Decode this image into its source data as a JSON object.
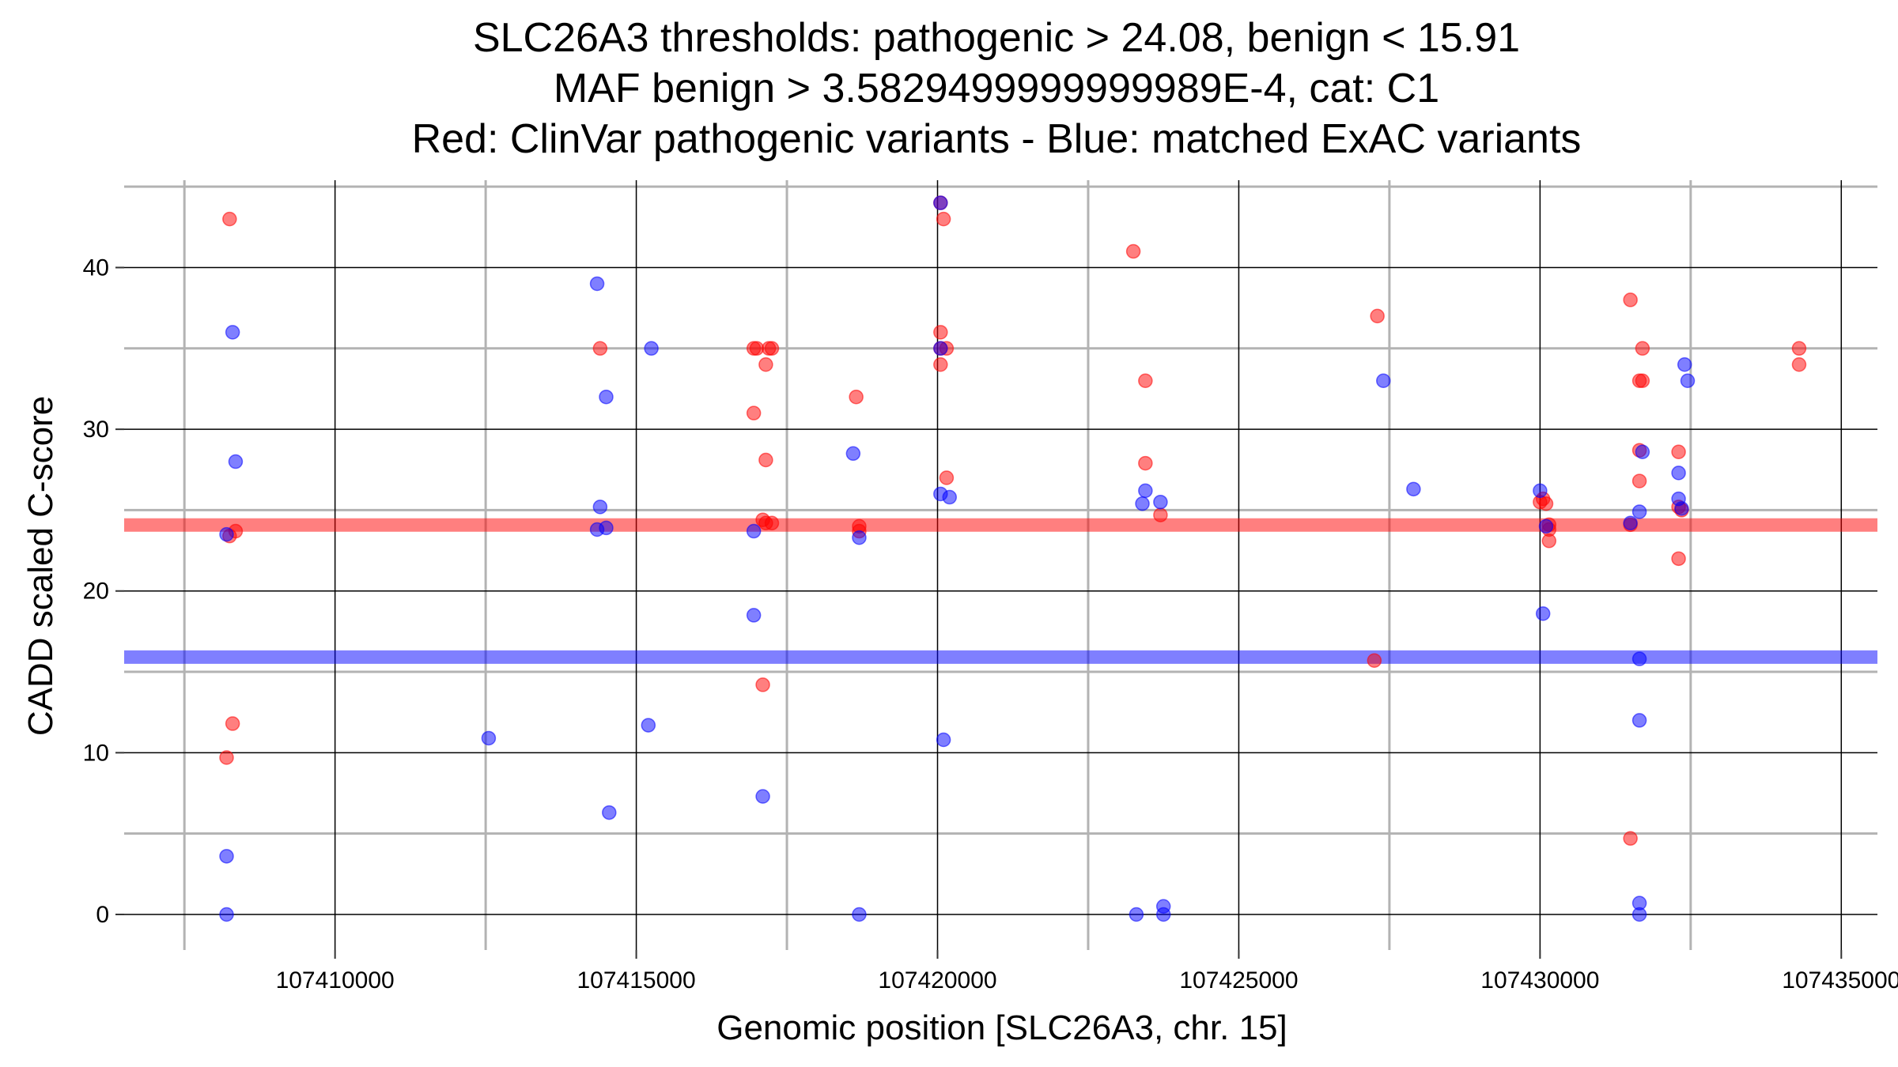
{
  "chart_data": {
    "type": "scatter",
    "title_lines": [
      "SLC26A3 thresholds: pathogenic > 24.08, benign < 15.91",
      "MAF benign > 3.5829499999999989E-4, cat: C1",
      "Red: ClinVar pathogenic variants - Blue: matched ExAC variants"
    ],
    "xlabel": "Genomic position [SLC26A3, chr. 15]",
    "ylabel": "CADD scaled C-score",
    "xlim": [
      107406500,
      107435600
    ],
    "ylim": [
      -2.2,
      45.4
    ],
    "x_ticks": [
      107410000,
      107415000,
      107420000,
      107425000,
      107430000,
      107435000
    ],
    "x_tick_labels": [
      "107410000",
      "107415000",
      "107420000",
      "107425000",
      "107430000",
      "107435000"
    ],
    "y_ticks": [
      0,
      10,
      20,
      30,
      40
    ],
    "y_tick_labels": [
      "0",
      "10",
      "20",
      "30",
      "40"
    ],
    "x_minor_gridlines": [
      107407500,
      107412500,
      107417500,
      107422500,
      107427500,
      107432500
    ],
    "y_minor_gridlines": [
      5,
      15,
      25,
      35,
      45
    ],
    "thresholds": [
      {
        "name": "pathogenic",
        "value": 24.08,
        "color": "#ff0000"
      },
      {
        "name": "benign",
        "value": 15.91,
        "color": "#0000ff"
      }
    ],
    "series": [
      {
        "name": "ClinVar pathogenic variants",
        "color": "#ff0000",
        "points": [
          [
            107408250,
            43.0
          ],
          [
            107408200,
            9.7
          ],
          [
            107408300,
            11.8
          ],
          [
            107408250,
            23.4
          ],
          [
            107408350,
            23.7
          ],
          [
            107414400,
            35.0
          ],
          [
            107416950,
            35.0
          ],
          [
            107417000,
            35.0
          ],
          [
            107417200,
            35.0
          ],
          [
            107417250,
            35.0
          ],
          [
            107417150,
            34.0
          ],
          [
            107416950,
            31.0
          ],
          [
            107417150,
            28.1
          ],
          [
            107417100,
            24.4
          ],
          [
            107417150,
            24.2
          ],
          [
            107417250,
            24.2
          ],
          [
            107417100,
            14.2
          ],
          [
            107418650,
            32.0
          ],
          [
            107418700,
            24.0
          ],
          [
            107418700,
            23.7
          ],
          [
            107420050,
            44.0
          ],
          [
            107420100,
            43.0
          ],
          [
            107420050,
            36.0
          ],
          [
            107420050,
            35.0
          ],
          [
            107420150,
            35.0
          ],
          [
            107420050,
            34.0
          ],
          [
            107420150,
            27.0
          ],
          [
            107423250,
            41.0
          ],
          [
            107423450,
            33.0
          ],
          [
            107423450,
            27.9
          ],
          [
            107423700,
            24.7
          ],
          [
            107427300,
            37.0
          ],
          [
            107427250,
            15.7
          ],
          [
            107430000,
            25.5
          ],
          [
            107430050,
            25.7
          ],
          [
            107430100,
            25.4
          ],
          [
            107430150,
            24.1
          ],
          [
            107430150,
            23.8
          ],
          [
            107430150,
            23.1
          ],
          [
            107431500,
            38.0
          ],
          [
            107431700,
            35.0
          ],
          [
            107431650,
            33.0
          ],
          [
            107431700,
            33.0
          ],
          [
            107431650,
            28.7
          ],
          [
            107431650,
            26.8
          ],
          [
            107431500,
            24.1
          ],
          [
            107431500,
            4.7
          ],
          [
            107432300,
            28.6
          ],
          [
            107432300,
            25.2
          ],
          [
            107432350,
            25.0
          ],
          [
            107432300,
            22.0
          ],
          [
            107434300,
            35.0
          ],
          [
            107434300,
            34.0
          ]
        ]
      },
      {
        "name": "matched ExAC variants",
        "color": "#0000ff",
        "points": [
          [
            107408300,
            36.0
          ],
          [
            107408350,
            28.0
          ],
          [
            107408200,
            23.5
          ],
          [
            107408200,
            3.6
          ],
          [
            107408200,
            0.0
          ],
          [
            107412550,
            10.9
          ],
          [
            107414350,
            39.0
          ],
          [
            107414500,
            32.0
          ],
          [
            107414400,
            25.2
          ],
          [
            107414350,
            23.8
          ],
          [
            107414500,
            23.9
          ],
          [
            107414550,
            6.3
          ],
          [
            107415250,
            35.0
          ],
          [
            107415200,
            11.7
          ],
          [
            107416950,
            23.7
          ],
          [
            107416950,
            18.5
          ],
          [
            107417100,
            7.3
          ],
          [
            107418600,
            28.5
          ],
          [
            107418700,
            23.3
          ],
          [
            107418700,
            0.0
          ],
          [
            107420050,
            44.0
          ],
          [
            107420050,
            35.0
          ],
          [
            107420050,
            26.0
          ],
          [
            107420200,
            25.8
          ],
          [
            107420100,
            10.8
          ],
          [
            107423300,
            0.0
          ],
          [
            107423450,
            26.2
          ],
          [
            107423400,
            25.4
          ],
          [
            107423700,
            25.5
          ],
          [
            107423750,
            0.5
          ],
          [
            107423750,
            0.0
          ],
          [
            107427400,
            33.0
          ],
          [
            107427900,
            26.3
          ],
          [
            107430000,
            26.2
          ],
          [
            107430100,
            24.0
          ],
          [
            107430050,
            18.6
          ],
          [
            107431650,
            15.8
          ],
          [
            107431500,
            24.2
          ],
          [
            107431650,
            24.9
          ],
          [
            107431700,
            28.6
          ],
          [
            107431650,
            12.0
          ],
          [
            107431650,
            0.7
          ],
          [
            107431650,
            0.0
          ],
          [
            107432400,
            34.0
          ],
          [
            107432450,
            33.0
          ],
          [
            107432300,
            27.3
          ],
          [
            107432300,
            25.7
          ],
          [
            107432350,
            25.1
          ]
        ]
      }
    ]
  }
}
